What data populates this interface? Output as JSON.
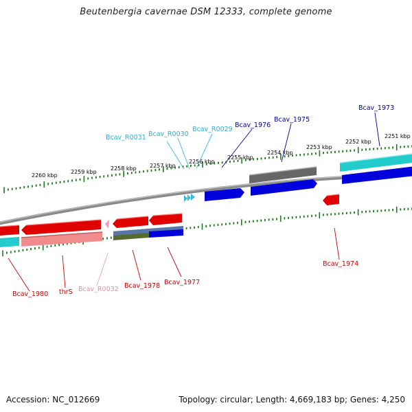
{
  "title": "Beutenbergia cavernae DSM 12333, complete genome",
  "footer": {
    "accession": "Accession: NC_012669",
    "topology": "Topology: circular; Length: 4,669,183 bp; Genes: 4,250"
  },
  "colors": {
    "cds_forward": "#0000dd",
    "cds_reverse": "#e00000",
    "rna": "#33bbdd",
    "pseudo_rna": "#ee99bb",
    "label_forward": "#000099",
    "label_rna": "#22b5e0",
    "label_reverse": "#cc0000",
    "label_pseudo": "#ee88aa",
    "tick_green": "#1a7a1a",
    "backbone": "#8a8a8a"
  },
  "kbp_labels": [
    "2260 kbp",
    "2259 kbp",
    "2258 kbp",
    "2257 kbp",
    "2256 kbp",
    "2255 kbp",
    "2254 kbp",
    "2253 kbp",
    "2252 kbp",
    "2251 kbp"
  ],
  "gene_labels": {
    "top": [
      "Bcav_R0031",
      "Bcav_R0030",
      "Bcav_R0029",
      "Bcav_1976",
      "Bcav_1975",
      "Bcav_1973"
    ],
    "bottom": [
      "Bcav_1980",
      "thrS",
      "Bcav_R0032",
      "Bcav_1978",
      "Bcav_1977",
      "Bcav_1974"
    ]
  }
}
